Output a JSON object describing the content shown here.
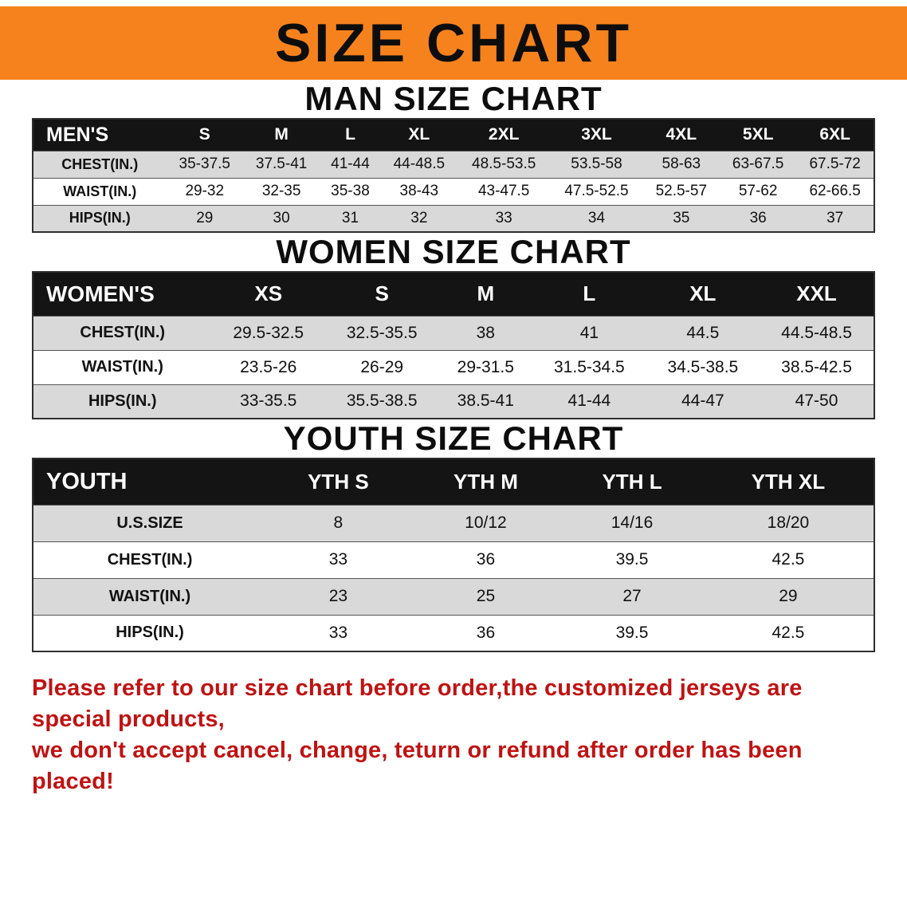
{
  "banner": {
    "title": "SIZE CHART",
    "bg_color": "#f6821e",
    "text_color": "#0d0d0d"
  },
  "colors": {
    "table_header_bg": "#141414",
    "table_header_text": "#ffffff",
    "row_alternate": "#d9d9d9",
    "disclaimer_text": "#c01212"
  },
  "sections": [
    {
      "heading": "MAN SIZE CHART",
      "table": {
        "header": [
          "MEN'S",
          "S",
          "M",
          "L",
          "XL",
          "2XL",
          "3XL",
          "4XL",
          "5XL",
          "6XL"
        ],
        "rows": [
          {
            "label": "CHEST(IN.)",
            "values": [
              "35-37.5",
              "37.5-41",
              "41-44",
              "44-48.5",
              "48.5-53.5",
              "53.5-58",
              "58-63",
              "63-67.5",
              "67.5-72"
            ]
          },
          {
            "label": "WAIST(IN.)",
            "values": [
              "29-32",
              "32-35",
              "35-38",
              "38-43",
              "43-47.5",
              "47.5-52.5",
              "52.5-57",
              "57-62",
              "62-66.5"
            ]
          },
          {
            "label": "HIPS(IN.)",
            "values": [
              "29",
              "30",
              "31",
              "32",
              "33",
              "34",
              "35",
              "36",
              "37"
            ]
          }
        ]
      }
    },
    {
      "heading": "WOMEN SIZE CHART",
      "table": {
        "header": [
          "WOMEN'S",
          "XS",
          "S",
          "M",
          "L",
          "XL",
          "XXL"
        ],
        "rows": [
          {
            "label": "CHEST(IN.)",
            "values": [
              "29.5-32.5",
              "32.5-35.5",
              "38",
              "41",
              "44.5",
              "44.5-48.5"
            ]
          },
          {
            "label": "WAIST(IN.)",
            "values": [
              "23.5-26",
              "26-29",
              "29-31.5",
              "31.5-34.5",
              "34.5-38.5",
              "38.5-42.5"
            ]
          },
          {
            "label": "HIPS(IN.)",
            "values": [
              "33-35.5",
              "35.5-38.5",
              "38.5-41",
              "41-44",
              "44-47",
              "47-50"
            ]
          }
        ]
      }
    },
    {
      "heading": "YOUTH SIZE CHART",
      "table": {
        "header": [
          "YOUTH",
          "YTH S",
          "YTH M",
          "YTH L",
          "YTH XL"
        ],
        "rows": [
          {
            "label": "U.S.SIZE",
            "values": [
              "8",
              "10/12",
              "14/16",
              "18/20"
            ]
          },
          {
            "label": "CHEST(IN.)",
            "values": [
              "33",
              "36",
              "39.5",
              "42.5"
            ]
          },
          {
            "label": "WAIST(IN.)",
            "values": [
              "23",
              "25",
              "27",
              "29"
            ]
          },
          {
            "label": "HIPS(IN.)",
            "values": [
              "33",
              "36",
              "39.5",
              "42.5"
            ]
          }
        ]
      }
    }
  ],
  "disclaimer": {
    "line1": "Please refer to our size chart before order,the customized jerseys are special products,",
    "line2": "we don't accept cancel, change, teturn or refund after order has been placed!"
  }
}
